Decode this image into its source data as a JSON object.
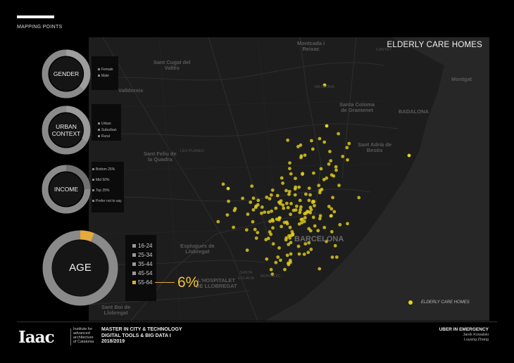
{
  "header": {
    "section": "MAPPING POINTS"
  },
  "map": {
    "title": "ELDERLY CARE HOMES",
    "legend": "ELDERLY CARE HOMES",
    "places": [
      {
        "id": "montcada",
        "text": "Montcada i\nReixac"
      },
      {
        "id": "canyet",
        "text": "CANYET",
        "small": true
      },
      {
        "id": "sant-cugat",
        "text": "Sant Cugat del\nVallès"
      },
      {
        "id": "valldoreix",
        "text": "Valldoreix"
      },
      {
        "id": "vallbona",
        "text": "VALLBONA",
        "small": true
      },
      {
        "id": "montgat",
        "text": "Montgat"
      },
      {
        "id": "santa-coloma",
        "text": "Santa Coloma\nde Gramenet"
      },
      {
        "id": "badalona",
        "text": "BADALONA"
      },
      {
        "id": "sant-adria",
        "text": "Sant Adrià de\nBesòs"
      },
      {
        "id": "planes",
        "text": "LES PLANES",
        "small": true
      },
      {
        "id": "quadra",
        "text": "Sant Feliu de\nla Quadra"
      },
      {
        "id": "barcelona",
        "text": "BARCELONA"
      },
      {
        "id": "esplugues",
        "text": "Esplugues de\nLlobregat"
      },
      {
        "id": "hospitalet",
        "text": "L'HOSPITALET\nDE LLOBREGAT"
      },
      {
        "id": "santa-eulalia",
        "text": "SANTA\nEULALIA",
        "small": true
      },
      {
        "id": "montjuic",
        "text": "MONTJUÏC",
        "small": true
      },
      {
        "id": "sant-boi",
        "text": "Sant Boi de\nLlobregat"
      }
    ]
  },
  "panels": {
    "gender": {
      "label": "GENDER",
      "categories": [
        "Female",
        "Male"
      ]
    },
    "urban": {
      "label": "URBAN CONTEXT",
      "categories": [
        "Urban",
        "Suburban",
        "Rural"
      ]
    },
    "income": {
      "label": "INCOME",
      "categories": [
        "Bottom 25%",
        "Mid 50%",
        "Top 25%",
        "Prefer not to say"
      ]
    },
    "age": {
      "label": "AGE",
      "categories": [
        "16-24",
        "25-34",
        "35-44",
        "45-54",
        "55-64"
      ],
      "highlight": "55-64",
      "highlight_value": "6%",
      "highlight_fraction": 0.06,
      "highlight_color": "#e6a93c"
    }
  },
  "colors": {
    "points": "#e6d21c",
    "accent": "#f2c43b"
  },
  "footer": {
    "logo": "Iaac",
    "institute": [
      "Institute for",
      "advanced",
      "architecture",
      "of Catalonia"
    ],
    "course": [
      "MASTER IN CITY & TECHNOLOGY",
      "DIGITAL TOOLS & BIG DATA I",
      "2018/2019"
    ],
    "project_title": "UBER IN EMERGENCY",
    "authors": [
      "Jarek Kowalski",
      "Luyang Zhang"
    ]
  }
}
